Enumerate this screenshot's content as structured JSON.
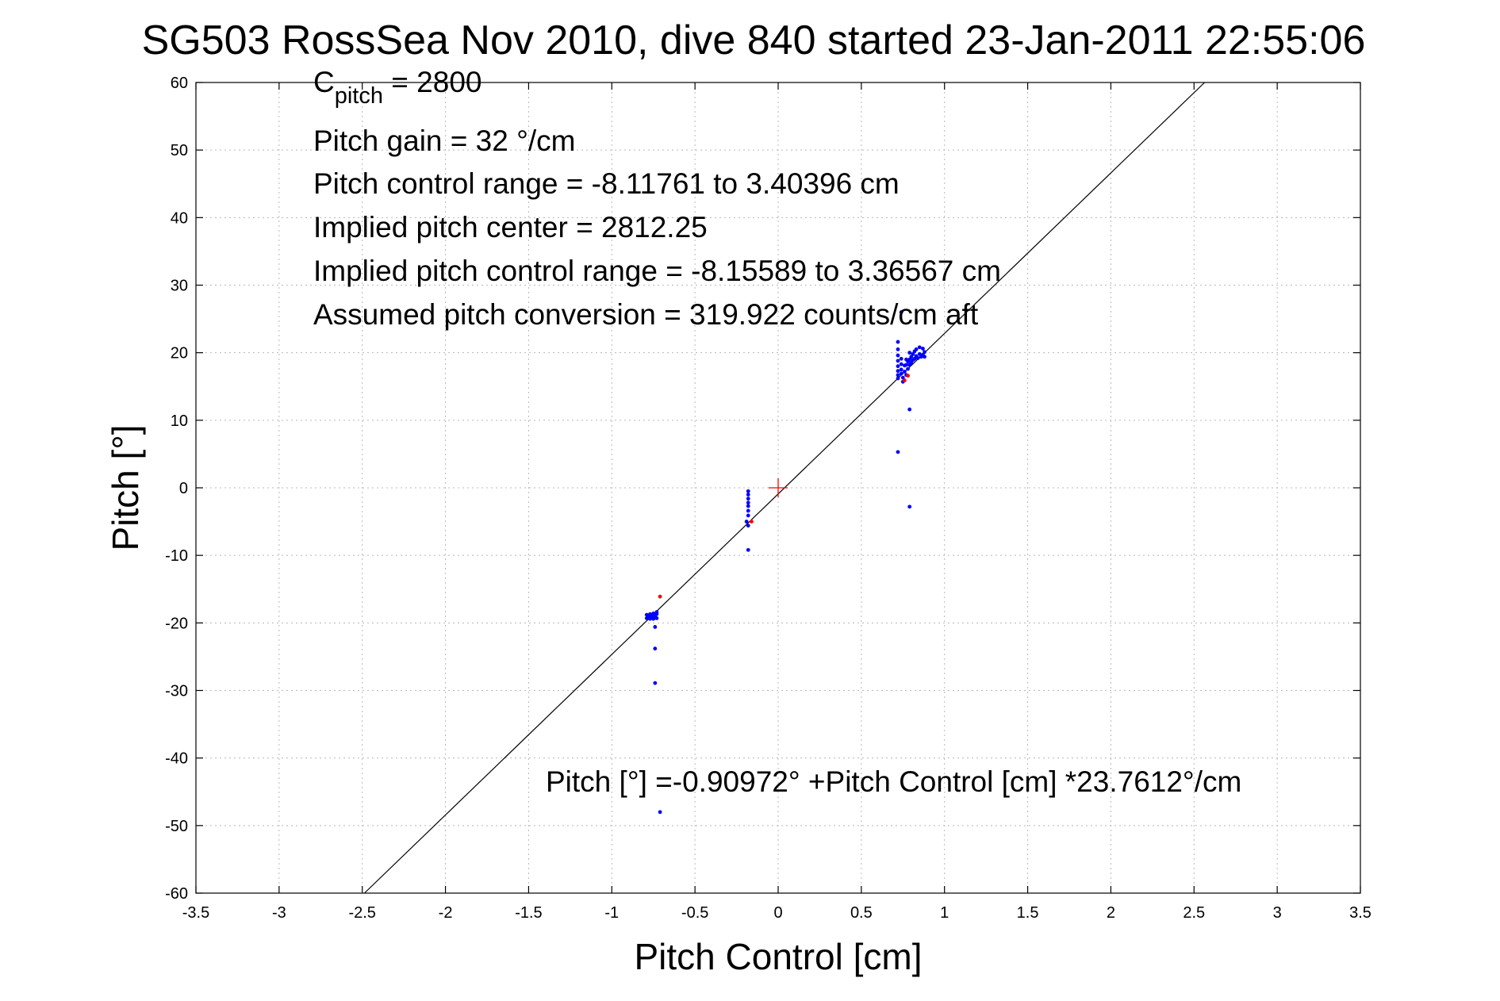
{
  "chart_data": {
    "type": "scatter",
    "title": "SG503 RossSea Nov 2010, dive 840 started 23-Jan-2011 22:55:06",
    "xlabel": "Pitch Control [cm]",
    "ylabel": "Pitch [°]",
    "xlim": [
      -3.5,
      3.5
    ],
    "ylim": [
      -60,
      60
    ],
    "xticks": [
      -3.5,
      -3,
      -2.5,
      -2,
      -1.5,
      -1,
      -0.5,
      0,
      0.5,
      1,
      1.5,
      2,
      2.5,
      3,
      3.5
    ],
    "xtick_labels": [
      "-3.5",
      "-3",
      "-2.5",
      "-2",
      "-1.5",
      "-1",
      "-0.5",
      "0",
      "0.5",
      "1",
      "1.5",
      "2",
      "2.5",
      "3",
      "3.5"
    ],
    "yticks": [
      60,
      50,
      40,
      30,
      20,
      10,
      0,
      -10,
      -20,
      -30,
      -40,
      -50,
      -60
    ],
    "ytick_labels": [
      "60",
      "50",
      "40",
      "30",
      "20",
      "10",
      "0",
      "-10",
      "-20",
      "-30",
      "-40",
      "-50",
      "-60"
    ],
    "grid": true,
    "annotations": {
      "cpitch_prefix": "C",
      "cpitch_subscript": "pitch",
      "cpitch_value": " = 2800",
      "pitch_gain": "Pitch gain = 32 °/cm",
      "control_range": "Pitch control range = -8.11761 to 3.40396 cm",
      "implied_center": "Implied pitch center = 2812.25",
      "implied_range": "Implied pitch control range = -8.15589 to 3.36567 cm",
      "conversion": "Assumed pitch conversion = 319.922 counts/cm aft",
      "fit_equation": "Pitch [°] =-0.90972° +Pitch Control [cm] *23.7612°/cm"
    },
    "fit_line": {
      "intercept": -0.90972,
      "slope": 23.7612
    },
    "center_marker": {
      "x": 0,
      "y": 0,
      "color": "#ff0000"
    },
    "series": [
      {
        "color": "#0000ff",
        "points": [
          [
            -0.79,
            -19.3
          ],
          [
            -0.79,
            -18.8
          ],
          [
            -0.78,
            -19.0
          ],
          [
            -0.77,
            -19.4
          ],
          [
            -0.77,
            -18.7
          ],
          [
            -0.76,
            -19.2
          ],
          [
            -0.76,
            -18.9
          ],
          [
            -0.75,
            -19.4
          ],
          [
            -0.75,
            -18.6
          ],
          [
            -0.74,
            -19.1
          ],
          [
            -0.74,
            -18.8
          ],
          [
            -0.73,
            -19.3
          ],
          [
            -0.73,
            -18.7
          ],
          [
            -0.73,
            -18.4
          ],
          [
            -0.74,
            -20.6
          ],
          [
            -0.74,
            -23.8
          ],
          [
            -0.74,
            -28.9
          ],
          [
            -0.71,
            -48.0
          ],
          [
            -0.18,
            -0.5
          ],
          [
            -0.18,
            -1.0
          ],
          [
            -0.18,
            -1.6
          ],
          [
            -0.18,
            -2.2
          ],
          [
            -0.18,
            -2.7
          ],
          [
            -0.18,
            -3.4
          ],
          [
            -0.18,
            -4.1
          ],
          [
            -0.19,
            -5.0
          ],
          [
            -0.18,
            -5.6
          ],
          [
            -0.18,
            -9.2
          ],
          [
            0.72,
            21.6
          ],
          [
            0.72,
            20.5
          ],
          [
            0.72,
            19.6
          ],
          [
            0.72,
            18.8
          ],
          [
            0.72,
            18.0
          ],
          [
            0.72,
            17.3
          ],
          [
            0.72,
            16.7
          ],
          [
            0.72,
            16.2
          ],
          [
            0.74,
            19.1
          ],
          [
            0.74,
            18.3
          ],
          [
            0.74,
            17.5
          ],
          [
            0.74,
            16.9
          ],
          [
            0.75,
            16.3
          ],
          [
            0.75,
            15.7
          ],
          [
            0.76,
            18.1
          ],
          [
            0.76,
            17.2
          ],
          [
            0.77,
            19.0
          ],
          [
            0.77,
            18.2
          ],
          [
            0.77,
            16.7
          ],
          [
            0.78,
            18.7
          ],
          [
            0.78,
            17.6
          ],
          [
            0.79,
            20.0
          ],
          [
            0.79,
            19.0
          ],
          [
            0.79,
            18.2
          ],
          [
            0.8,
            19.4
          ],
          [
            0.8,
            18.5
          ],
          [
            0.81,
            19.8
          ],
          [
            0.81,
            18.9
          ],
          [
            0.82,
            20.2
          ],
          [
            0.82,
            19.1
          ],
          [
            0.83,
            20.5
          ],
          [
            0.83,
            19.5
          ],
          [
            0.84,
            19.2
          ],
          [
            0.85,
            20.8
          ],
          [
            0.85,
            19.8
          ],
          [
            0.86,
            19.4
          ],
          [
            0.87,
            20.6
          ],
          [
            0.87,
            19.7
          ],
          [
            0.88,
            20.1
          ],
          [
            0.88,
            19.4
          ],
          [
            0.79,
            11.6
          ],
          [
            0.72,
            5.3
          ],
          [
            0.79,
            -2.8
          ],
          [
            0.74,
            26.0
          ]
        ]
      },
      {
        "color": "#ff0000",
        "points": [
          [
            -0.71,
            -16.1
          ],
          [
            -0.16,
            -5.0
          ],
          [
            0.76,
            15.9
          ],
          [
            0.78,
            16.6
          ]
        ]
      }
    ]
  }
}
